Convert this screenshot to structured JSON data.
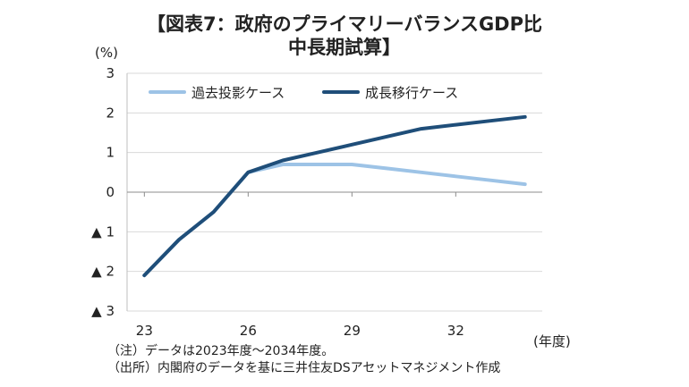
{
  "chart_data": {
    "type": "line",
    "title_line1": "【図表7：政府のプライマリーバランスGDP比",
    "title_line2": "中長期試算】",
    "ylabel": "(%)",
    "xlabel": "(年度)",
    "x": [
      23,
      24,
      25,
      26,
      27,
      28,
      29,
      30,
      31,
      32,
      33,
      34
    ],
    "xticks": [
      "23",
      "26",
      "29",
      "32"
    ],
    "xtick_values": [
      23,
      26,
      29,
      32
    ],
    "xlim": [
      22.5,
      34.5
    ],
    "ylim": [
      -3,
      3
    ],
    "yticks": [
      3,
      2,
      1,
      0,
      -1,
      -2,
      -3
    ],
    "ytick_labels": [
      "3",
      "2",
      "1",
      "0",
      "▲ 1",
      "▲ 2",
      "▲ 3"
    ],
    "grid": true,
    "legend_position": "top-left",
    "series": [
      {
        "name": "過去投影ケース",
        "color": "#9dc3e6",
        "values": [
          -2.1,
          -1.2,
          -0.5,
          0.5,
          0.7,
          0.7,
          0.7,
          0.6,
          0.5,
          0.4,
          0.3,
          0.2
        ]
      },
      {
        "name": "成長移行ケース",
        "color": "#1f4e79",
        "values": [
          -2.1,
          -1.2,
          -0.5,
          0.5,
          0.8,
          1.0,
          1.2,
          1.4,
          1.6,
          1.7,
          1.8,
          1.9
        ]
      }
    ],
    "notes": [
      "（注）データは2023年度～2034年度。",
      "（出所）内閣府のデータを基に三井住友DSアセットマネジメント作成"
    ]
  }
}
